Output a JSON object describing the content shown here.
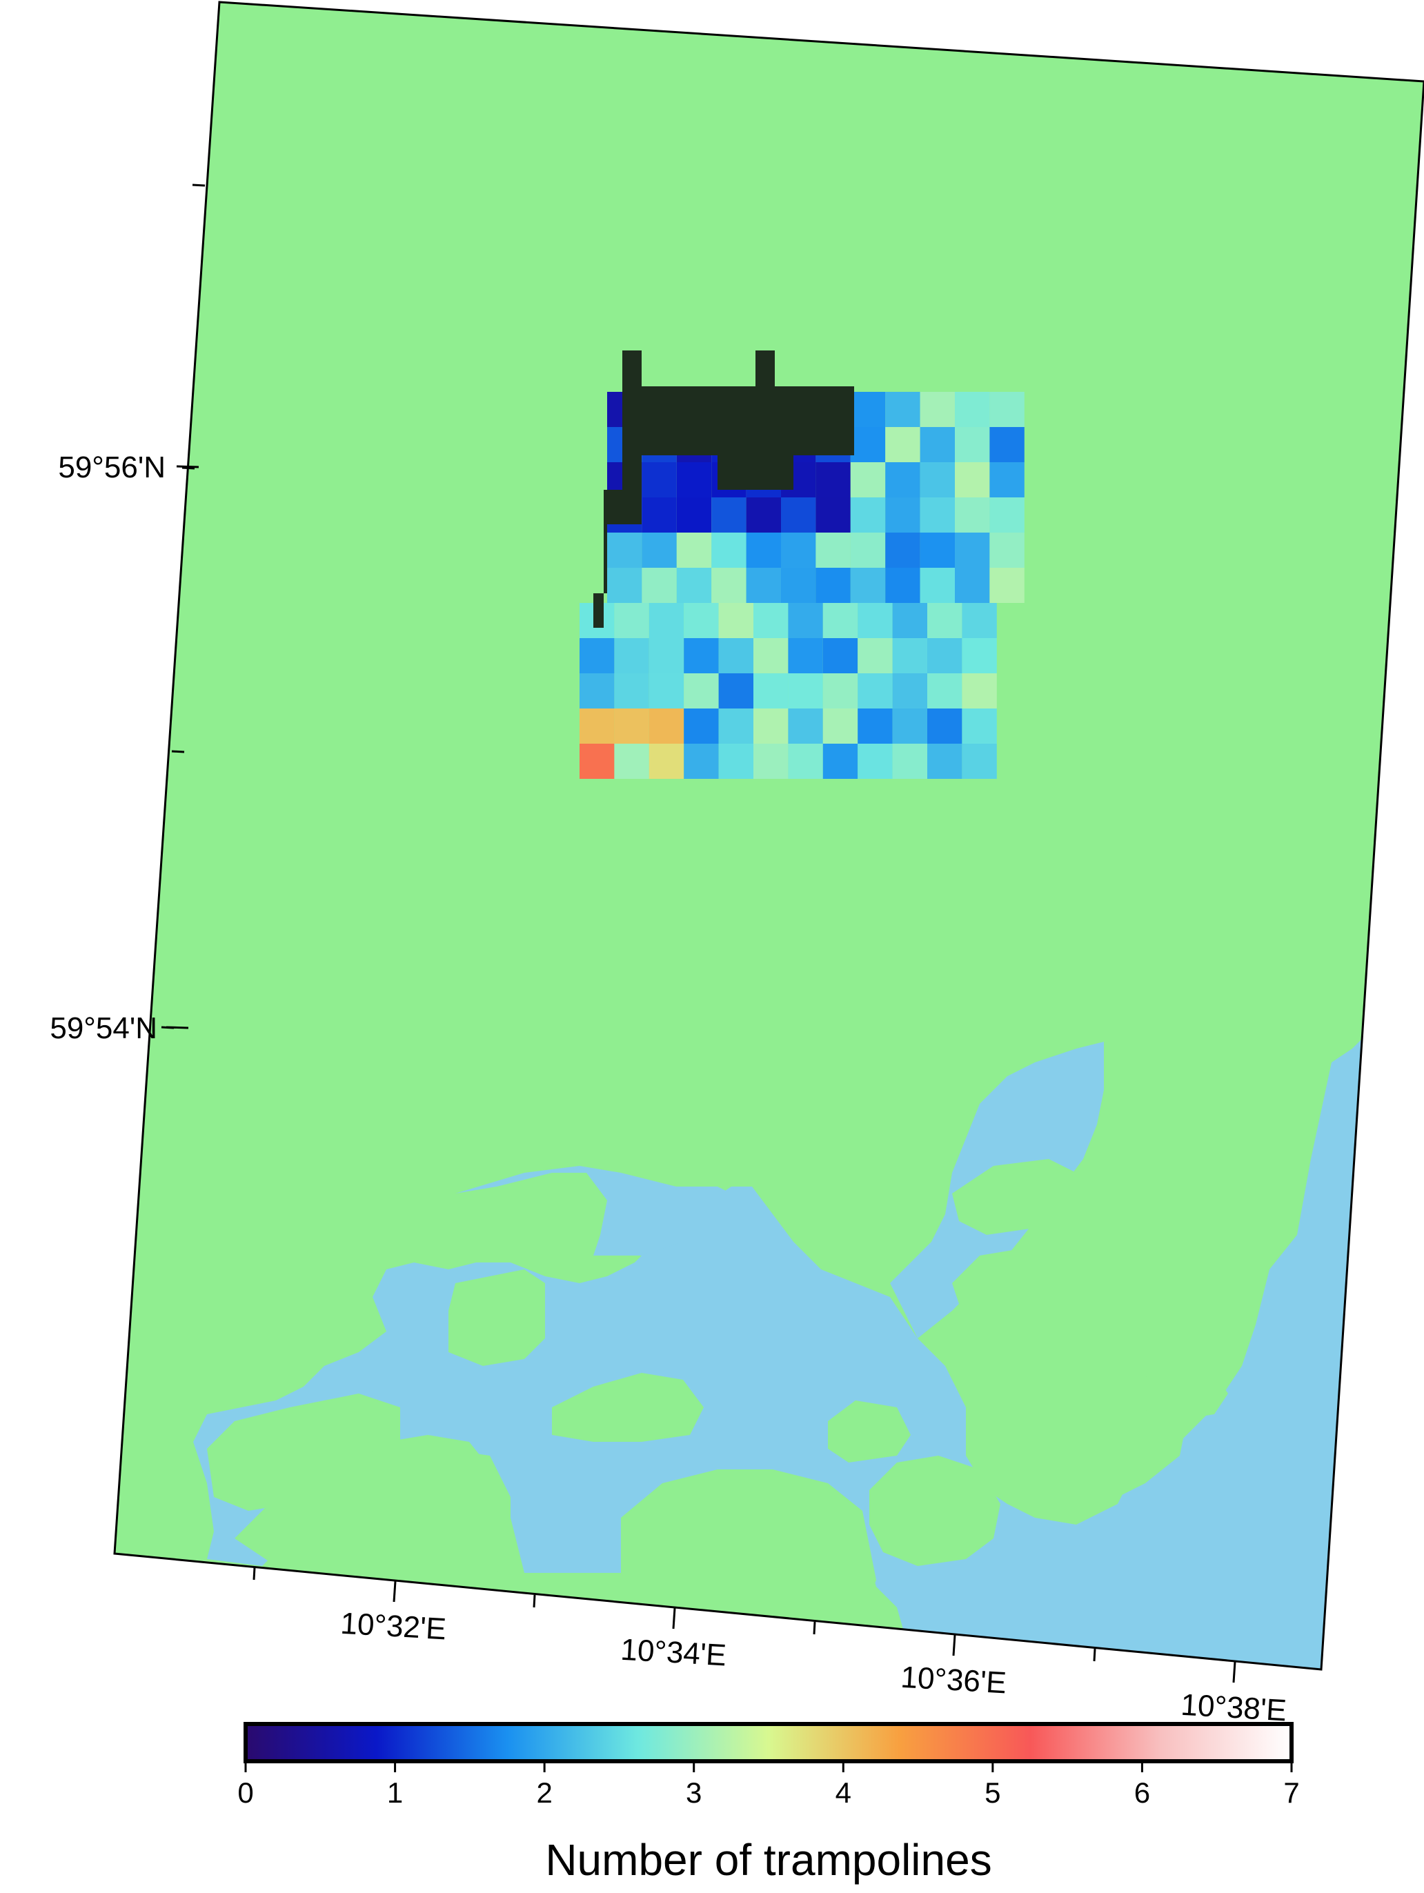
{
  "map": {
    "land_color": "#90EE90",
    "water_color": "#87CEEB",
    "frame_color": "#000000",
    "no_data_color": "#1e2d1e"
  },
  "axes": {
    "latitude_labels": [
      "59°56'N",
      "59°54'N"
    ],
    "longitude_labels": [
      "10°32'E",
      "10°34'E",
      "10°36'E",
      "10°38'E"
    ]
  },
  "colorbar": {
    "title": "Number of trampolines",
    "range": [
      0,
      7
    ],
    "tick_labels": [
      "0",
      "1",
      "2",
      "3",
      "4",
      "5",
      "6",
      "7"
    ],
    "palette": [
      "#2a0a6e",
      "#0a18c8",
      "#1a90f0",
      "#6ee8e0",
      "#d8f890",
      "#f8a040",
      "#f85858",
      "#f8c0c0",
      "#ffffff"
    ]
  }
}
